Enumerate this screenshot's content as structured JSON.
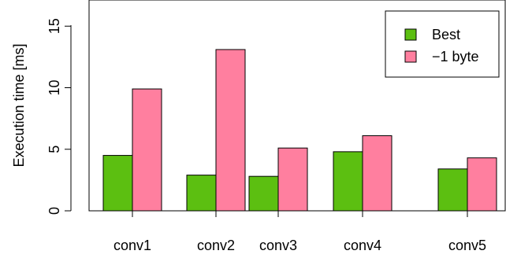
{
  "chart_data": {
    "type": "bar",
    "title": "",
    "xlabel": "",
    "ylabel": "Execution time [ms]",
    "categories": [
      "conv1",
      "conv2",
      "conv3",
      "conv4",
      "conv5"
    ],
    "series": [
      {
        "name": "Best",
        "color": "#5cbf11",
        "values": [
          4.5,
          2.9,
          2.8,
          4.8,
          3.4
        ]
      },
      {
        "name": "−1 byte",
        "color": "#ff7f9f",
        "values": [
          9.9,
          13.1,
          5.1,
          6.1,
          4.3
        ]
      }
    ],
    "ylim": [
      0,
      17
    ],
    "yticks": [
      0,
      5,
      10,
      15
    ],
    "ytick_labels": [
      "0",
      "5",
      "10",
      "15"
    ],
    "grid": false,
    "legend_position": "top-right"
  }
}
